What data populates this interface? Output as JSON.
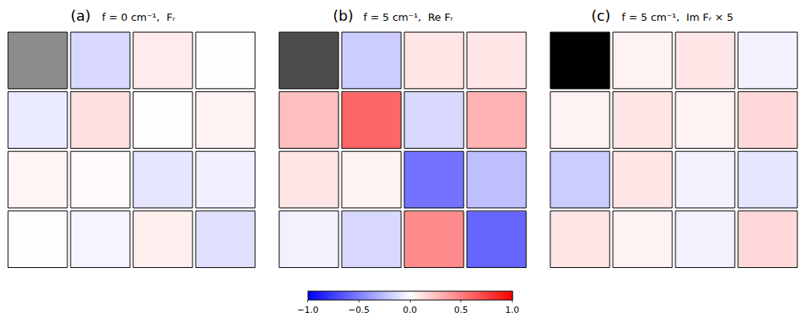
{
  "chart_data": {
    "type": "heatmap",
    "tick_labels": false,
    "colors": [
      "#0000ff",
      "#ffffff",
      "#ff0000"
    ],
    "zlim": [
      -1,
      1
    ],
    "zticks": [
      {
        "value": -1,
        "label": "−1.0"
      },
      {
        "value": -0.5,
        "label": "−0.5"
      },
      {
        "value": 0,
        "label": "0.0"
      },
      {
        "value": 0.5,
        "label": "0.5"
      },
      {
        "value": 1,
        "label": "1.0"
      }
    ],
    "intensity_lim": [
      0,
      1
    ],
    "panels": [
      {
        "label": "(a)",
        "title": "f = 0 cm⁻¹,  Fᵣ",
        "intensity": 0.55,
        "cells": [
          [
            null,
            -0.15,
            0.08,
            0.01
          ],
          [
            -0.08,
            0.12,
            0.01,
            0.05
          ],
          [
            0.04,
            0.02,
            -0.1,
            -0.06
          ],
          [
            0.01,
            -0.04,
            0.06,
            -0.12
          ]
        ]
      },
      {
        "label": "(b)",
        "title": "f = 5 cm⁻¹,  Re Fᵣ",
        "intensity": 0.3,
        "cells": [
          [
            null,
            -0.2,
            0.1,
            0.1
          ],
          [
            0.25,
            0.6,
            -0.15,
            0.3
          ],
          [
            0.1,
            0.05,
            -0.55,
            -0.25
          ],
          [
            -0.05,
            -0.15,
            0.45,
            -0.6
          ]
        ]
      },
      {
        "label": "(c)",
        "title": "f = 5 cm⁻¹,  Im Fᵣ × 5",
        "intensity": 0,
        "cells": [
          [
            null,
            0.05,
            0.1,
            -0.05
          ],
          [
            0.05,
            0.1,
            0.05,
            0.15
          ],
          [
            -0.2,
            0.1,
            -0.05,
            -0.1
          ],
          [
            0.1,
            0.05,
            -0.05,
            0.15
          ]
        ]
      }
    ]
  }
}
